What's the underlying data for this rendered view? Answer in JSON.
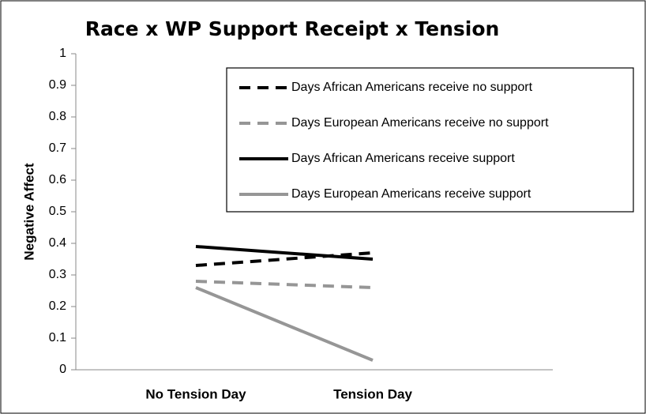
{
  "chart_data": {
    "type": "line",
    "title": "Race x WP Support Receipt x Tension",
    "y_label": "Negative Affect",
    "categories": [
      "No Tension Day",
      "Tension Day"
    ],
    "series": [
      {
        "name": "Days African Americans receive no support",
        "color": "#000000",
        "style": "dashed",
        "values": [
          0.33,
          0.37
        ]
      },
      {
        "name": "Days European Americans receive no support",
        "color": "#969696",
        "style": "dashed",
        "values": [
          0.28,
          0.26
        ]
      },
      {
        "name": "Days African Americans receive support",
        "color": "#000000",
        "style": "solid",
        "values": [
          0.39,
          0.35
        ]
      },
      {
        "name": "Days European Americans receive support",
        "color": "#969696",
        "style": "solid",
        "values": [
          0.26,
          0.03
        ]
      }
    ],
    "ylim": [
      0,
      1
    ],
    "yticks": [
      0,
      0.1,
      0.2,
      0.3,
      0.4,
      0.5,
      0.6,
      0.7,
      0.8,
      0.9,
      1
    ],
    "grid": false,
    "legend": "upper right"
  }
}
